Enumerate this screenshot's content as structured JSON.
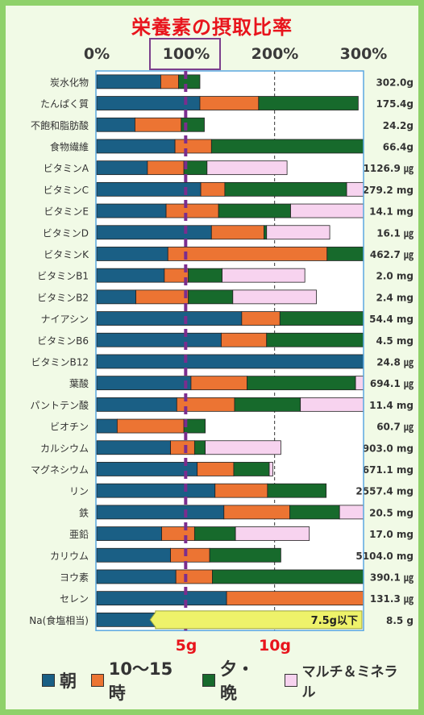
{
  "colors": {
    "morning": "#1a5f85",
    "afternoon": "#ec7433",
    "evening": "#176a2c",
    "supplement": "#f7d3ef",
    "purple_line": "#7b2d8e",
    "title_red": "#e8141c",
    "callout": "#eef26a"
  },
  "chart_data": {
    "type": "bar",
    "orientation": "horizontal",
    "stacked": true,
    "title": "栄養素の摂取比率",
    "x_ticks": [
      "0%",
      "100%",
      "200%",
      "300%"
    ],
    "xlim": [
      0,
      300
    ],
    "unit": "%",
    "series": [
      {
        "name": "朝",
        "values": [
          72,
          116,
          43,
          88,
          57,
          117,
          78,
          129,
          80,
          76,
          44,
          163,
          140,
          300,
          106,
          90,
          23,
          83,
          113,
          133,
          143,
          73,
          83,
          89,
          146,
          111
        ]
      },
      {
        "name": "10〜15時",
        "values": [
          20,
          66,
          52,
          41,
          41,
          27,
          59,
          59,
          179,
          27,
          59,
          43,
          51,
          0,
          63,
          65,
          75,
          27,
          41,
          59,
          74,
          37,
          44,
          41,
          157,
          27
        ]
      },
      {
        "name": "夕・晩",
        "values": [
          24,
          112,
          26,
          173,
          26,
          137,
          81,
          3,
          43,
          38,
          50,
          96,
          112,
          0,
          122,
          74,
          24,
          12,
          40,
          66,
          56,
          46,
          80,
          172,
          0,
          32
        ]
      },
      {
        "name": "マルチ＆ミネラル",
        "values": [
          0,
          0,
          0,
          0,
          90,
          21,
          84,
          71,
          0,
          93,
          94,
          0,
          0,
          0,
          11,
          72,
          0,
          85,
          4,
          0,
          28,
          83,
          0,
          0,
          0,
          0
        ]
      }
    ],
    "categories": [
      {
        "name": "炭水化物",
        "amount": "302.0g"
      },
      {
        "name": "たんぱく質",
        "amount": "175.4g"
      },
      {
        "name": "不飽和脂肪酸",
        "amount": "24.2g"
      },
      {
        "name": "食物繊維",
        "amount": "66.4g"
      },
      {
        "name": "ビタミンA",
        "amount": "1126.9 ㎍"
      },
      {
        "name": "ビタミンC",
        "amount": "279.2 mg"
      },
      {
        "name": "ビタミンE",
        "amount": "14.1 mg"
      },
      {
        "name": "ビタミンD",
        "amount": "16.1 ㎍"
      },
      {
        "name": "ビタミンK",
        "amount": "462.7 ㎍"
      },
      {
        "name": "ビタミンB1",
        "amount": "2.0 mg"
      },
      {
        "name": "ビタミンB2",
        "amount": "2.4 mg"
      },
      {
        "name": "ナイアシン",
        "amount": "54.4 mg"
      },
      {
        "name": "ビタミンB6",
        "amount": "4.5 mg"
      },
      {
        "name": "ビタミンB12",
        "amount": "24.8 ㎍"
      },
      {
        "name": "葉酸",
        "amount": "694.1 ㎍"
      },
      {
        "name": "パントテン酸",
        "amount": "11.4 mg"
      },
      {
        "name": "ビオチン",
        "amount": "60.7 ㎍"
      },
      {
        "name": "カルシウム",
        "amount": "903.0 mg"
      },
      {
        "name": "マグネシウム",
        "amount": "671.1 mg"
      },
      {
        "name": "リン",
        "amount": "2557.4 mg"
      },
      {
        "name": "鉄",
        "amount": "20.5 mg"
      },
      {
        "name": "亜鉛",
        "amount": "17.0 mg"
      },
      {
        "name": "カリウム",
        "amount": "5104.0 mg"
      },
      {
        "name": "ヨウ素",
        "amount": "390.1 ㎍"
      },
      {
        "name": "セレン",
        "amount": "131.3 ㎍"
      },
      {
        "name": "Na(食塩相当)",
        "amount": "8.5 g"
      }
    ],
    "reference_line": {
      "value": 100,
      "style": "dashed"
    },
    "bottom_labels": [
      "5g",
      "10g"
    ],
    "bottom_label_positions": [
      100,
      200
    ],
    "annotation": {
      "text": "7.5g以下",
      "row": "Na(食塩相当)"
    },
    "grid": true,
    "legend": "bottom"
  },
  "legend": {
    "items": [
      "朝",
      "10〜15時",
      "夕・晩",
      "マルチ＆ミネラル"
    ]
  }
}
